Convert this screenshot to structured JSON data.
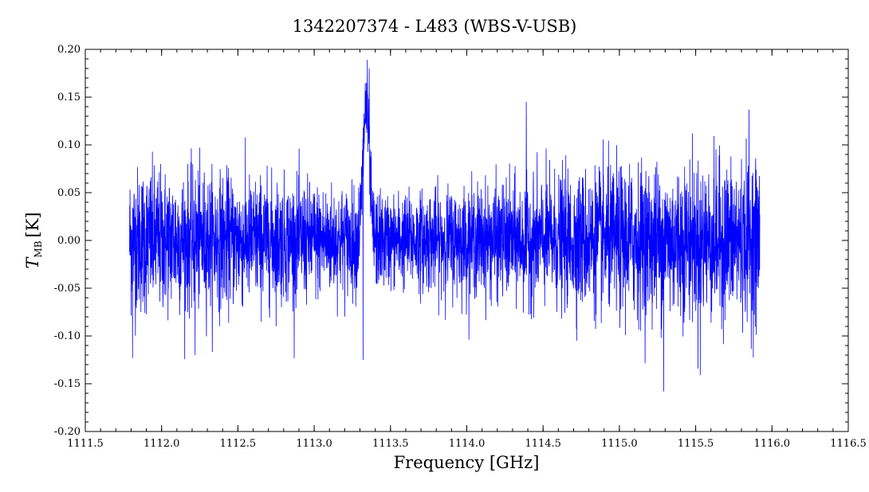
{
  "chart_data": {
    "type": "line",
    "title": "1342207374 - L483 (WBS-V-USB)",
    "xlabel": "Frequency [GHz]",
    "ylabel_main": "T",
    "ylabel_sub": "MB",
    "ylabel_unit": "[K]",
    "xlim": [
      1111.5,
      1116.5
    ],
    "ylim": [
      -0.2,
      0.2
    ],
    "x_ticks": [
      1111.5,
      1112.0,
      1112.5,
      1113.0,
      1113.5,
      1114.0,
      1114.5,
      1115.0,
      1115.5,
      1116.0,
      1116.5
    ],
    "x_tick_labels": [
      "1111.5",
      "1112.0",
      "1112.5",
      "1113.0",
      "1113.5",
      "1114.0",
      "1114.5",
      "1115.0",
      "1115.5",
      "1116.0",
      "1116.5"
    ],
    "y_ticks": [
      -0.2,
      -0.15,
      -0.1,
      -0.05,
      0.0,
      0.05,
      0.1,
      0.15,
      0.2
    ],
    "y_tick_labels": [
      "-0.20",
      "-0.15",
      "-0.10",
      "-0.05",
      "0.00",
      "0.05",
      "0.10",
      "0.15",
      "0.20"
    ],
    "grid": false,
    "series": [
      {
        "color": "#0000ff",
        "x_start": 1111.79,
        "x_end": 1115.92,
        "baseline": 0.0,
        "noise_profile": [
          {
            "x": 1111.79,
            "sigma": 0.045
          },
          {
            "x": 1113.0,
            "sigma": 0.035
          },
          {
            "x": 1113.5,
            "sigma": 0.028
          },
          {
            "x": 1114.3,
            "sigma": 0.035
          },
          {
            "x": 1115.0,
            "sigma": 0.045
          },
          {
            "x": 1115.92,
            "sigma": 0.048
          }
        ],
        "features": [
          {
            "type": "emission",
            "center": 1113.34,
            "peak": 0.14,
            "width": 0.02
          },
          {
            "type": "spike",
            "x": 1113.36,
            "value": 0.18
          },
          {
            "type": "spike",
            "x": 1113.32,
            "value": -0.125
          },
          {
            "type": "spike",
            "x": 1115.29,
            "value": -0.158
          },
          {
            "type": "spike",
            "x": 1114.39,
            "value": 0.145
          },
          {
            "type": "spike",
            "x": 1115.85,
            "value": 0.137
          },
          {
            "type": "spike",
            "x": 1111.81,
            "value": -0.123
          },
          {
            "type": "spike",
            "x": 1112.22,
            "value": -0.12
          },
          {
            "type": "spike",
            "x": 1115.53,
            "value": -0.141
          }
        ]
      }
    ]
  }
}
